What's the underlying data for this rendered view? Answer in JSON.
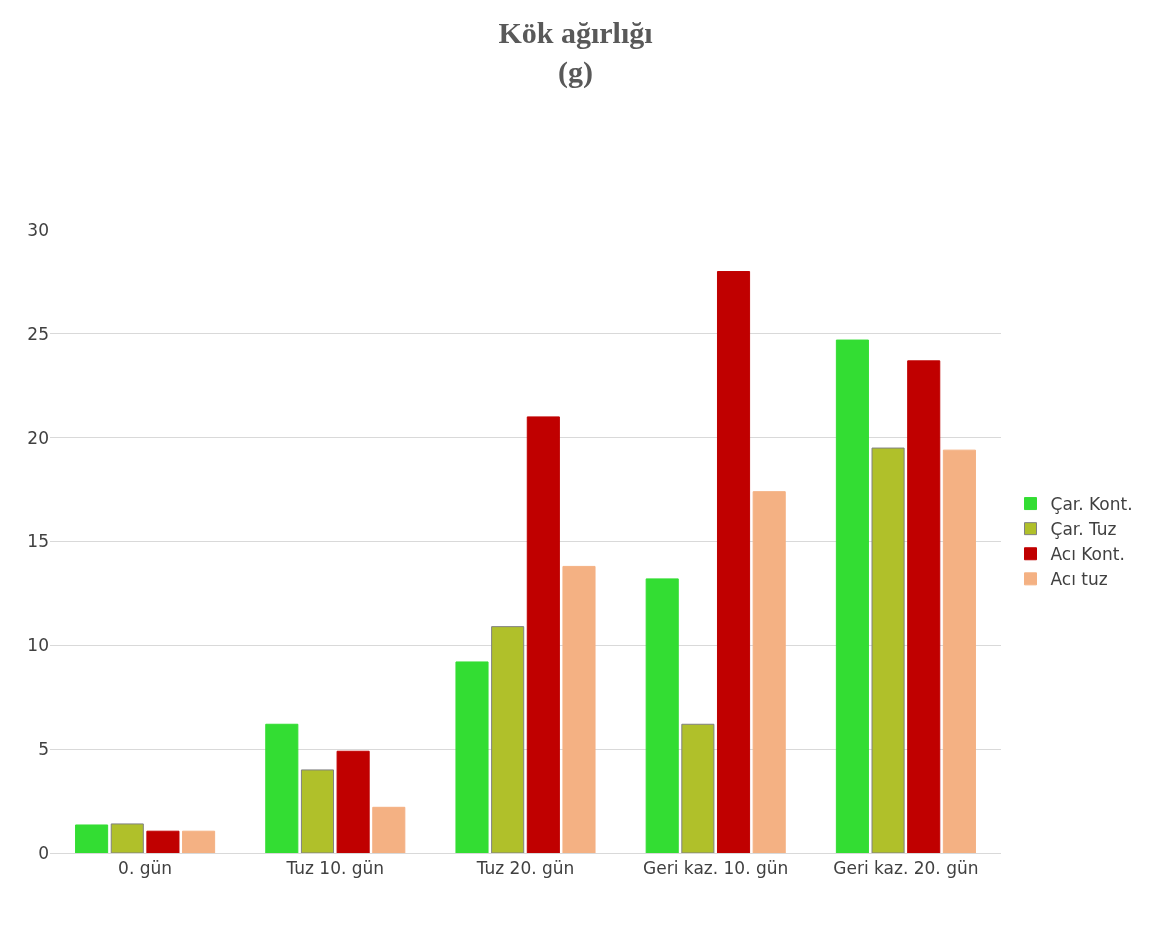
{
  "chart_data": {
    "type": "bar",
    "title": "Kök ağırlığı\n(g)",
    "categories": [
      "0. gün",
      "Tuz 10. gün",
      "Tuz 20. gün",
      "Geri kaz. 10. gün",
      "Geri kaz. 20. gün"
    ],
    "series": [
      {
        "name": "Çar. Kont.",
        "color": "#33dd33",
        "values": [
          1.35,
          6.2,
          9.2,
          13.2,
          24.7
        ]
      },
      {
        "name": "Çar. Tuz",
        "color": "#b0c02a",
        "values": [
          1.4,
          4.0,
          10.9,
          6.2,
          19.5
        ]
      },
      {
        "name": "Acı Kont.",
        "color": "#c00000",
        "values": [
          1.05,
          4.9,
          21.0,
          28.0,
          23.7
        ]
      },
      {
        "name": "Acı tuz",
        "color": "#f4b183",
        "values": [
          1.05,
          2.2,
          13.8,
          17.4,
          19.4
        ]
      }
    ],
    "ylim": [
      0,
      30
    ],
    "yticks": [
      0,
      5,
      10,
      15,
      20,
      25,
      30
    ],
    "grid": "y",
    "legend": "right"
  }
}
